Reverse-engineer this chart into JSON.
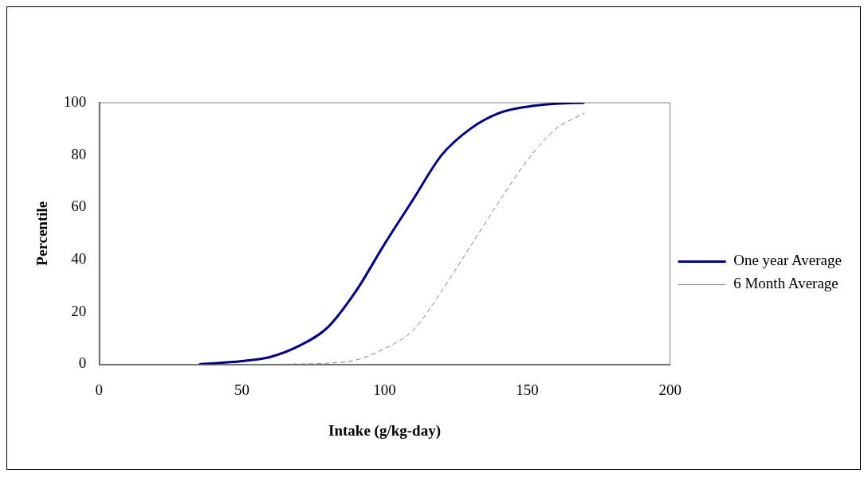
{
  "chart_data": {
    "type": "line",
    "xlabel": "Intake (g/kg-day)",
    "ylabel": "Percentile",
    "xlim": [
      0,
      200
    ],
    "xticks": [
      0,
      50,
      100,
      150,
      200
    ],
    "ylim": [
      0,
      100
    ],
    "yticks": [
      0,
      20,
      40,
      60,
      80,
      100
    ],
    "legend": "right",
    "marker": "none",
    "grid": false,
    "series": [
      {
        "name": "One year Average",
        "color": "#000080",
        "line_style": "solid",
        "x": [
          35,
          50,
          60,
          70,
          80,
          90,
          100,
          110,
          120,
          130,
          140,
          150,
          160,
          170
        ],
        "values": [
          0,
          1.2,
          2.8,
          7,
          14,
          28,
          46,
          63,
          80,
          90,
          96,
          98.5,
          99.6,
          100
        ]
      },
      {
        "name": "6 Month Average",
        "color": "#808080",
        "line_style": "dashed",
        "x": [
          65,
          80,
          90,
          100,
          110,
          120,
          130,
          140,
          150,
          160,
          170
        ],
        "values": [
          0,
          0.4,
          1.6,
          6,
          13,
          28,
          45,
          62,
          78,
          90,
          96
        ]
      }
    ]
  }
}
